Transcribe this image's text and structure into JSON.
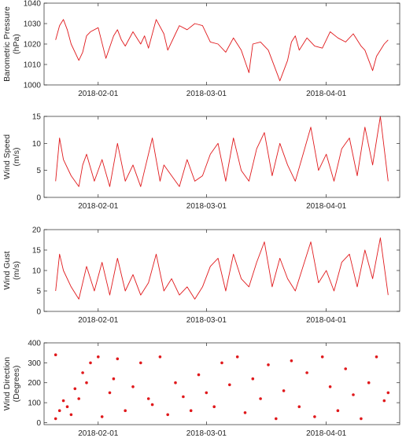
{
  "chart_data": [
    {
      "type": "line",
      "ylabel": [
        "Barometric Pressure",
        "(hPa)"
      ],
      "x_range": [
        "2018-01-18",
        "2018-04-20"
      ],
      "xticks": [
        "2018-02-01",
        "2018-03-01",
        "2018-04-01"
      ],
      "ylim": [
        1000,
        1040
      ],
      "yticks": [
        1000,
        1010,
        1020,
        1030,
        1040
      ],
      "grid": false,
      "color": "#e0191c",
      "series": [
        {
          "x": [
            "2018-01-21",
            "2018-01-22",
            "2018-01-23",
            "2018-01-24",
            "2018-01-25",
            "2018-01-27",
            "2018-01-28",
            "2018-01-29",
            "2018-01-30",
            "2018-02-01",
            "2018-02-03",
            "2018-02-05",
            "2018-02-06",
            "2018-02-07",
            "2018-02-08",
            "2018-02-10",
            "2018-02-12",
            "2018-02-13",
            "2018-02-14",
            "2018-02-16",
            "2018-02-18",
            "2018-02-19",
            "2018-02-21",
            "2018-02-22",
            "2018-02-24",
            "2018-02-26",
            "2018-02-28",
            "2018-03-02",
            "2018-03-04",
            "2018-03-06",
            "2018-03-08",
            "2018-03-10",
            "2018-03-12",
            "2018-03-13",
            "2018-03-15",
            "2018-03-17",
            "2018-03-18",
            "2018-03-20",
            "2018-03-22",
            "2018-03-23",
            "2018-03-24",
            "2018-03-25",
            "2018-03-27",
            "2018-03-29",
            "2018-03-31",
            "2018-04-02",
            "2018-04-04",
            "2018-04-06",
            "2018-04-08",
            "2018-04-10",
            "2018-04-11",
            "2018-04-13",
            "2018-04-14",
            "2018-04-16",
            "2018-04-17"
          ],
          "y": [
            1022,
            1029,
            1032,
            1027,
            1020,
            1012,
            1016,
            1024,
            1026,
            1028,
            1013,
            1024,
            1027,
            1022,
            1019,
            1026,
            1020,
            1024,
            1018,
            1032,
            1025,
            1017,
            1025,
            1029,
            1027,
            1030,
            1029,
            1021,
            1020,
            1016,
            1023,
            1017,
            1006,
            1020,
            1021,
            1017,
            1012,
            1002,
            1012,
            1021,
            1024,
            1017,
            1023,
            1019,
            1018,
            1026,
            1023,
            1021,
            1025,
            1019,
            1017,
            1007,
            1014,
            1020,
            1022
          ]
        }
      ]
    },
    {
      "type": "line",
      "ylabel": [
        "Wind Speed",
        "(m/s)"
      ],
      "x_range": [
        "2018-01-18",
        "2018-04-20"
      ],
      "xticks": [
        "2018-02-01",
        "2018-03-01",
        "2018-04-01"
      ],
      "ylim": [
        0,
        15
      ],
      "yticks": [
        0,
        5,
        10,
        15
      ],
      "grid": false,
      "color": "#e0191c",
      "series": [
        {
          "x": [
            "2018-01-21",
            "2018-01-22",
            "2018-01-23",
            "2018-01-25",
            "2018-01-27",
            "2018-01-28",
            "2018-01-29",
            "2018-01-31",
            "2018-02-02",
            "2018-02-04",
            "2018-02-06",
            "2018-02-08",
            "2018-02-10",
            "2018-02-12",
            "2018-02-13",
            "2018-02-15",
            "2018-02-17",
            "2018-02-18",
            "2018-02-20",
            "2018-02-22",
            "2018-02-24",
            "2018-02-26",
            "2018-02-28",
            "2018-03-02",
            "2018-03-04",
            "2018-03-06",
            "2018-03-08",
            "2018-03-10",
            "2018-03-12",
            "2018-03-14",
            "2018-03-16",
            "2018-03-18",
            "2018-03-20",
            "2018-03-22",
            "2018-03-24",
            "2018-03-26",
            "2018-03-28",
            "2018-03-30",
            "2018-04-01",
            "2018-04-03",
            "2018-04-05",
            "2018-04-07",
            "2018-04-09",
            "2018-04-11",
            "2018-04-13",
            "2018-04-15",
            "2018-04-17"
          ],
          "y": [
            3,
            11,
            7,
            4,
            2,
            6,
            8,
            3,
            7,
            2,
            10,
            3,
            6,
            2,
            5,
            11,
            3,
            6,
            4,
            2,
            7,
            3,
            4,
            8,
            10,
            3,
            11,
            5,
            3,
            9,
            12,
            4,
            10,
            6,
            3,
            8,
            13,
            5,
            8,
            3,
            9,
            11,
            4,
            13,
            6,
            15,
            3
          ]
        }
      ]
    },
    {
      "type": "line",
      "ylabel": [
        "Wind Gust",
        "(m/s)"
      ],
      "x_range": [
        "2018-01-18",
        "2018-04-20"
      ],
      "xticks": [
        "2018-02-01",
        "2018-03-01",
        "2018-04-01"
      ],
      "ylim": [
        0,
        20
      ],
      "yticks": [
        0,
        5,
        10,
        15,
        20
      ],
      "grid": false,
      "color": "#e0191c",
      "series": [
        {
          "x": [
            "2018-01-21",
            "2018-01-22",
            "2018-01-23",
            "2018-01-25",
            "2018-01-27",
            "2018-01-29",
            "2018-01-31",
            "2018-02-02",
            "2018-02-04",
            "2018-02-06",
            "2018-02-08",
            "2018-02-10",
            "2018-02-12",
            "2018-02-14",
            "2018-02-16",
            "2018-02-18",
            "2018-02-20",
            "2018-02-22",
            "2018-02-24",
            "2018-02-26",
            "2018-02-28",
            "2018-03-02",
            "2018-03-04",
            "2018-03-06",
            "2018-03-08",
            "2018-03-10",
            "2018-03-12",
            "2018-03-14",
            "2018-03-16",
            "2018-03-18",
            "2018-03-20",
            "2018-03-22",
            "2018-03-24",
            "2018-03-26",
            "2018-03-28",
            "2018-03-30",
            "2018-04-01",
            "2018-04-03",
            "2018-04-05",
            "2018-04-07",
            "2018-04-09",
            "2018-04-11",
            "2018-04-13",
            "2018-04-15",
            "2018-04-17"
          ],
          "y": [
            5,
            14,
            10,
            6,
            3,
            11,
            5,
            12,
            4,
            13,
            5,
            9,
            4,
            7,
            14,
            5,
            8,
            4,
            6,
            3,
            6,
            11,
            13,
            5,
            14,
            8,
            6,
            12,
            17,
            6,
            13,
            8,
            5,
            11,
            17,
            7,
            10,
            5,
            12,
            14,
            6,
            15,
            8,
            18,
            4
          ]
        }
      ]
    },
    {
      "type": "scatter",
      "ylabel": [
        "Wind Direction",
        "(Degrees)"
      ],
      "x_range": [
        "2018-01-18",
        "2018-04-20"
      ],
      "xticks": [
        "2018-02-01",
        "2018-03-01",
        "2018-04-01"
      ],
      "ylim": [
        -10,
        400
      ],
      "yticks": [
        0,
        100,
        200,
        300,
        400
      ],
      "grid": false,
      "color": "#e0191c",
      "series": [
        {
          "x": [
            "2018-01-21",
            "2018-01-21",
            "2018-01-22",
            "2018-01-23",
            "2018-01-24",
            "2018-01-25",
            "2018-01-26",
            "2018-01-27",
            "2018-01-28",
            "2018-01-29",
            "2018-01-30",
            "2018-02-01",
            "2018-02-02",
            "2018-02-04",
            "2018-02-05",
            "2018-02-06",
            "2018-02-08",
            "2018-02-10",
            "2018-02-12",
            "2018-02-14",
            "2018-02-15",
            "2018-02-17",
            "2018-02-19",
            "2018-02-21",
            "2018-02-23",
            "2018-02-25",
            "2018-02-27",
            "2018-03-01",
            "2018-03-03",
            "2018-03-05",
            "2018-03-07",
            "2018-03-09",
            "2018-03-11",
            "2018-03-13",
            "2018-03-15",
            "2018-03-17",
            "2018-03-19",
            "2018-03-21",
            "2018-03-23",
            "2018-03-25",
            "2018-03-27",
            "2018-03-29",
            "2018-03-31",
            "2018-04-02",
            "2018-04-04",
            "2018-04-06",
            "2018-04-08",
            "2018-04-10",
            "2018-04-12",
            "2018-04-14",
            "2018-04-16",
            "2018-04-17"
          ],
          "y": [
            340,
            20,
            60,
            110,
            80,
            40,
            170,
            120,
            250,
            200,
            300,
            330,
            30,
            150,
            220,
            320,
            60,
            180,
            300,
            120,
            90,
            330,
            40,
            200,
            130,
            60,
            240,
            150,
            80,
            300,
            190,
            330,
            50,
            220,
            120,
            290,
            20,
            160,
            310,
            80,
            250,
            30,
            330,
            180,
            60,
            270,
            140,
            20,
            200,
            330,
            110,
            150
          ]
        }
      ]
    }
  ]
}
